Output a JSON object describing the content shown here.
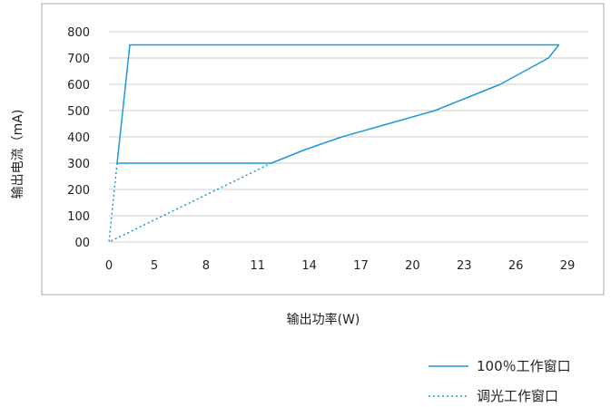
{
  "chart_data": {
    "type": "line",
    "title": "",
    "xlabel": "输出功率(W)",
    "ylabel": "输出电流（mA)",
    "x_ticks": [
      "0",
      "5",
      "8",
      "11",
      "14",
      "17",
      "20",
      "23",
      "26",
      "29"
    ],
    "y_ticks": [
      "00",
      "100",
      "200",
      "300",
      "400",
      "500",
      "600",
      "700",
      "800"
    ],
    "xlim": [
      0,
      29
    ],
    "ylim": [
      0,
      800
    ],
    "grid": "horizontal",
    "legend_position": "bottom-right",
    "colors": {
      "line": "#1a9ad6",
      "frame": "#aaaaaa",
      "grid": "#cfcfcf"
    },
    "series": [
      {
        "name": "100％工作窗口",
        "style": "solid",
        "points": [
          [
            0.9,
            300
          ],
          [
            2.3,
            750
          ],
          [
            28.5,
            750
          ],
          [
            27.9,
            700
          ],
          [
            25.1,
            600
          ],
          [
            23.2,
            550
          ],
          [
            21.3,
            500
          ],
          [
            18.6,
            450
          ],
          [
            15.9,
            400
          ],
          [
            13.7,
            350
          ],
          [
            11.8,
            300
          ],
          [
            0.9,
            300
          ]
        ]
      },
      {
        "name": "调光工作窗口",
        "style": "dotted",
        "points": [
          [
            0.9,
            300
          ],
          [
            0,
            0
          ],
          [
            11.8,
            300
          ]
        ]
      }
    ]
  }
}
